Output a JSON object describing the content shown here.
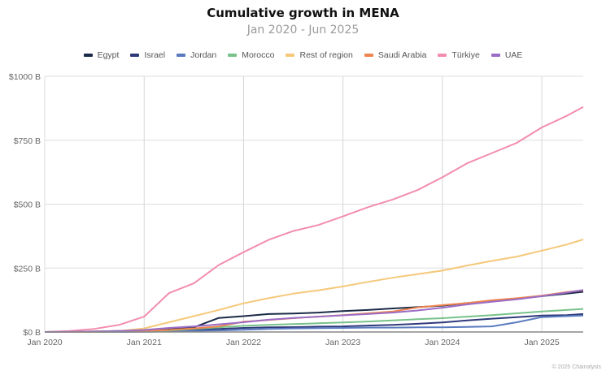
{
  "chart_data": {
    "type": "line",
    "title": "Cumulative growth in MENA",
    "subtitle": "Jan 2020 - Jun 2025",
    "xlabel": "",
    "ylabel": "",
    "ylim": [
      0,
      1000
    ],
    "y_ticks": [
      0,
      250,
      500,
      750,
      1000
    ],
    "y_tick_labels": [
      "$0 B",
      "$250 B",
      "$500 B",
      "$750 B",
      "$1000 B"
    ],
    "x_tick_labels": [
      "Jan 2020",
      "Jan 2021",
      "Jan 2022",
      "Jan 2023",
      "Jan 2024",
      "Jan 2025"
    ],
    "x_tick_months": [
      0,
      12,
      24,
      36,
      48,
      60
    ],
    "x_range_months": [
      0,
      65
    ],
    "grid": true,
    "legend_position": "top-center",
    "x": [
      0,
      3,
      6,
      9,
      12,
      15,
      18,
      21,
      24,
      27,
      30,
      33,
      36,
      39,
      42,
      45,
      48,
      51,
      54,
      57,
      60,
      63,
      65
    ],
    "series": [
      {
        "name": "Egypt",
        "color": "#1b2a47",
        "values": [
          0,
          1,
          2,
          4,
          6,
          10,
          18,
          55,
          62,
          70,
          72,
          76,
          82,
          86,
          92,
          97,
          103,
          113,
          122,
          130,
          140,
          150,
          157
        ]
      },
      {
        "name": "Israel",
        "color": "#2f3a7a",
        "values": [
          0,
          0,
          1,
          1,
          2,
          4,
          8,
          12,
          16,
          18,
          19,
          21,
          22,
          25,
          28,
          32,
          37,
          45,
          52,
          58,
          64,
          66,
          70
        ]
      },
      {
        "name": "Jordan",
        "color": "#5a7bbf",
        "values": [
          0,
          0,
          0,
          0,
          1,
          2,
          4,
          6,
          9,
          12,
          14,
          15,
          16,
          17,
          17,
          18,
          18,
          20,
          22,
          38,
          58,
          62,
          64
        ]
      },
      {
        "name": "Morocco",
        "color": "#78c28a",
        "values": [
          0,
          0,
          1,
          1,
          2,
          6,
          12,
          18,
          24,
          28,
          31,
          34,
          37,
          41,
          45,
          50,
          54,
          60,
          66,
          73,
          80,
          86,
          90
        ]
      },
      {
        "name": "Rest of region",
        "color": "#f5c87a",
        "values": [
          0,
          1,
          2,
          4,
          14,
          38,
          62,
          86,
          112,
          132,
          150,
          163,
          178,
          196,
          212,
          226,
          240,
          260,
          278,
          295,
          318,
          342,
          362
        ]
      },
      {
        "name": "Saudi Arabia",
        "color": "#ee8550",
        "values": [
          0,
          0,
          1,
          2,
          4,
          8,
          14,
          22,
          40,
          47,
          54,
          60,
          66,
          73,
          80,
          96,
          105,
          113,
          124,
          132,
          142,
          156,
          163
        ]
      },
      {
        "name": "Türkiye",
        "color": "#f28db0",
        "values": [
          0,
          4,
          12,
          28,
          60,
          152,
          190,
          262,
          312,
          360,
          395,
          418,
          452,
          488,
          518,
          555,
          605,
          660,
          700,
          740,
          800,
          845,
          880
        ]
      },
      {
        "name": "UAE",
        "color": "#9b6dc6",
        "values": [
          0,
          1,
          2,
          4,
          8,
          16,
          22,
          30,
          38,
          48,
          55,
          60,
          65,
          70,
          76,
          84,
          95,
          108,
          118,
          128,
          140,
          154,
          164
        ]
      }
    ]
  },
  "credit": "© 2025 Chainalysis"
}
